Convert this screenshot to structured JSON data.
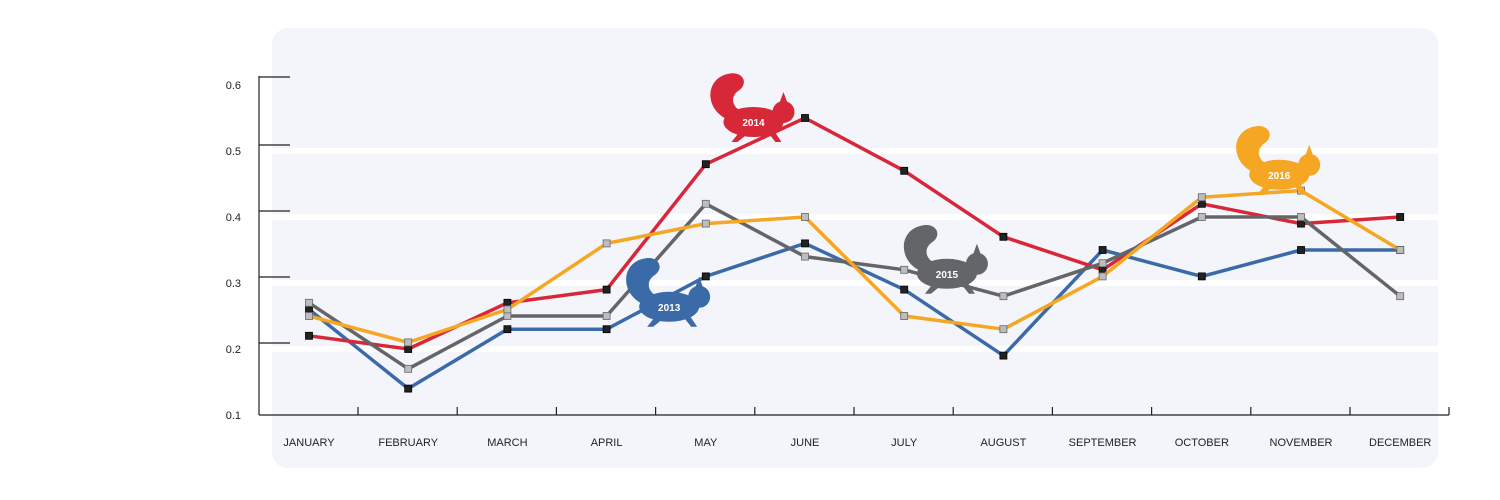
{
  "chart_data": {
    "type": "line",
    "title": "",
    "xlabel": "",
    "ylabel": "",
    "ylim": [
      0.1,
      0.6
    ],
    "yticks": [
      "0.1",
      "0.2",
      "0.3",
      "0.4",
      "0.5",
      "0.6"
    ],
    "grid": "horizontal bands",
    "legend": "none (series identified by squirrel silhouettes labelled with years)",
    "categories": [
      "JANUARY",
      "FEBRUARY",
      "MARCH",
      "APRIL",
      "MAY",
      "JUNE",
      "JULY",
      "AUGUST",
      "SEPTEMBER",
      "OCTOBER",
      "NOVEMBER",
      "DECEMBER"
    ],
    "series": [
      {
        "name": "2013",
        "color": "#3b6aa8",
        "values": [
          0.26,
          0.14,
          0.23,
          0.23,
          0.31,
          0.36,
          0.29,
          0.19,
          0.35,
          0.31,
          0.35,
          0.35
        ],
        "badge_month_index": 3.55,
        "badge_value": 0.27
      },
      {
        "name": "2014",
        "color": "#d7283a",
        "values": [
          0.22,
          0.2,
          0.27,
          0.29,
          0.48,
          0.55,
          0.47,
          0.37,
          0.32,
          0.42,
          0.39,
          0.4
        ],
        "badge_month_index": 4.4,
        "badge_value": 0.55
      },
      {
        "name": "2015",
        "color": "#646569",
        "values": [
          0.27,
          0.17,
          0.25,
          0.25,
          0.42,
          0.34,
          0.32,
          0.28,
          0.33,
          0.4,
          0.4,
          0.28
        ],
        "badge_month_index": 6.35,
        "badge_value": 0.32
      },
      {
        "name": "2016",
        "color": "#f5a623",
        "values": [
          0.25,
          0.21,
          0.26,
          0.36,
          0.39,
          0.4,
          0.25,
          0.23,
          0.31,
          0.43,
          0.44,
          0.35
        ],
        "badge_month_index": 9.7,
        "badge_value": 0.47
      }
    ]
  },
  "colors": {
    "panel_background": "#f4f5fa",
    "band": "#ffffff",
    "axis": "#222222",
    "marker_dark": "#222222",
    "marker_light": "#bdbdbd"
  }
}
